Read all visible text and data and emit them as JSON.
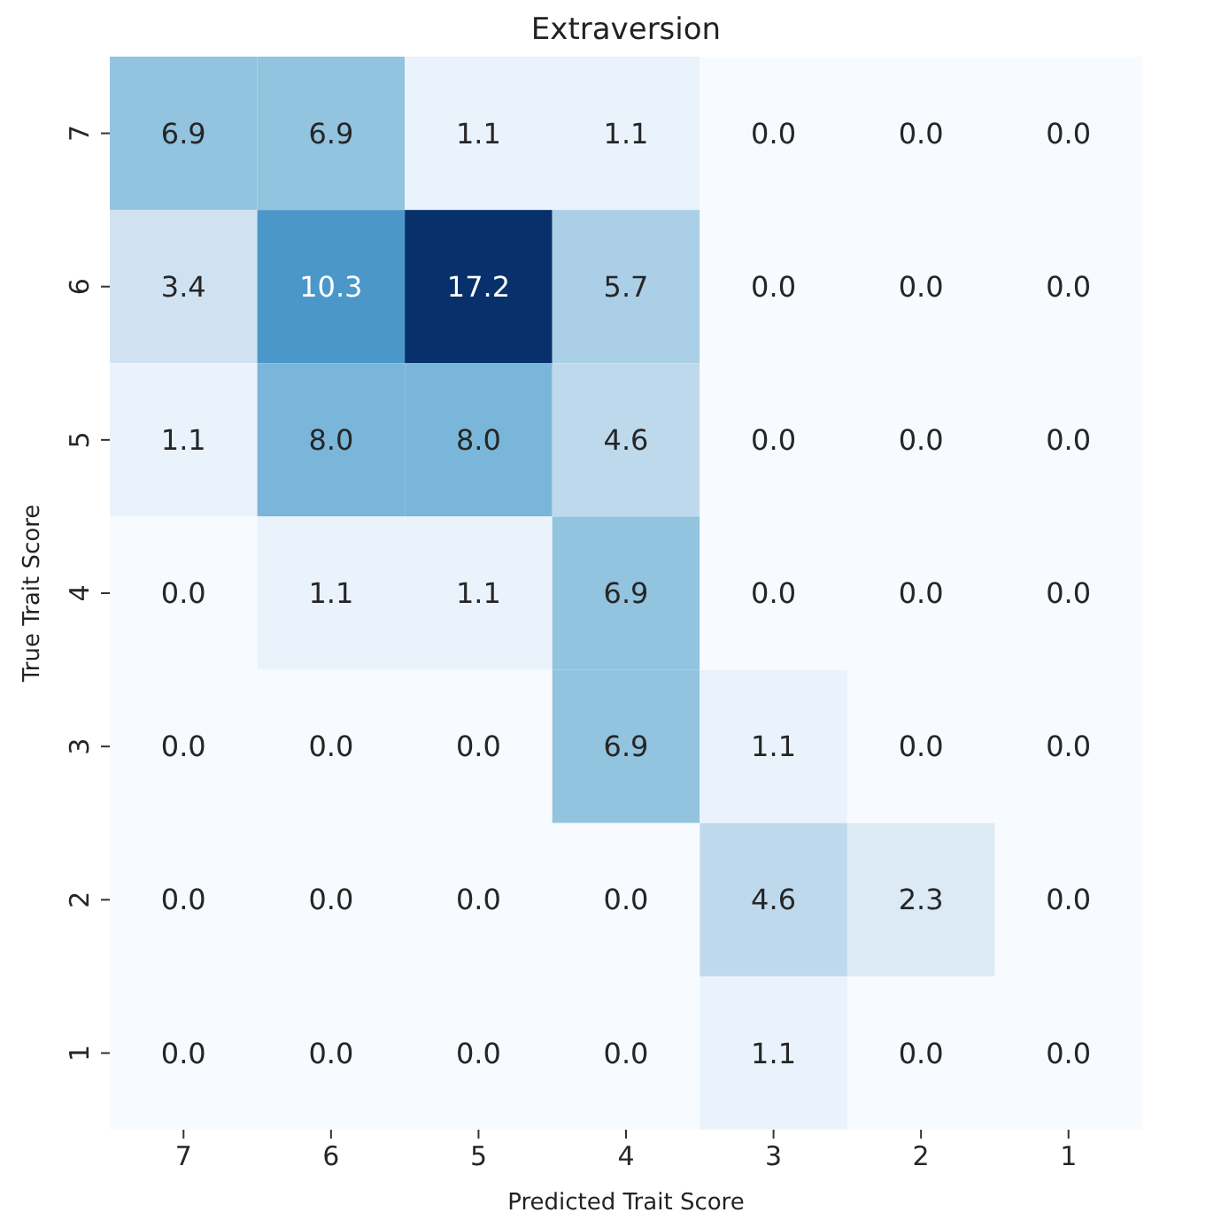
{
  "chart_data": {
    "type": "heatmap",
    "title": "Extraversion",
    "xlabel": "Predicted Trait Score",
    "ylabel": "True Trait Score",
    "categories": [
      "7",
      "6",
      "5",
      "4",
      "3",
      "2",
      "1"
    ],
    "y_categories": [
      "7",
      "6",
      "5",
      "4",
      "3",
      "2",
      "1"
    ],
    "cells": [
      [
        6.9,
        6.9,
        1.1,
        1.1,
        0.0,
        0.0,
        0.0
      ],
      [
        3.4,
        10.3,
        17.2,
        5.7,
        0.0,
        0.0,
        0.0
      ],
      [
        1.1,
        8.0,
        8.0,
        4.6,
        0.0,
        0.0,
        0.0
      ],
      [
        0.0,
        1.1,
        1.1,
        6.9,
        0.0,
        0.0,
        0.0
      ],
      [
        0.0,
        0.0,
        0.0,
        6.9,
        1.1,
        0.0,
        0.0
      ],
      [
        0.0,
        0.0,
        0.0,
        0.0,
        4.6,
        2.3,
        0.0
      ],
      [
        0.0,
        0.0,
        0.0,
        0.0,
        1.1,
        0.0,
        0.0
      ]
    ],
    "cell_labels": [
      [
        "6.9",
        "6.9",
        "1.1",
        "1.1",
        "0.0",
        "0.0",
        "0.0"
      ],
      [
        "3.4",
        "10.3",
        "17.2",
        "5.7",
        "0.0",
        "0.0",
        "0.0"
      ],
      [
        "1.1",
        "8.0",
        "8.0",
        "4.6",
        "0.0",
        "0.0",
        "0.0"
      ],
      [
        "0.0",
        "1.1",
        "1.1",
        "6.9",
        "0.0",
        "0.0",
        "0.0"
      ],
      [
        "0.0",
        "0.0",
        "0.0",
        "6.9",
        "1.1",
        "0.0",
        "0.0"
      ],
      [
        "0.0",
        "0.0",
        "0.0",
        "0.0",
        "4.6",
        "2.3",
        "0.0"
      ],
      [
        "0.0",
        "0.0",
        "0.0",
        "0.0",
        "1.1",
        "0.0",
        "0.0"
      ]
    ],
    "data_labels": true
  }
}
